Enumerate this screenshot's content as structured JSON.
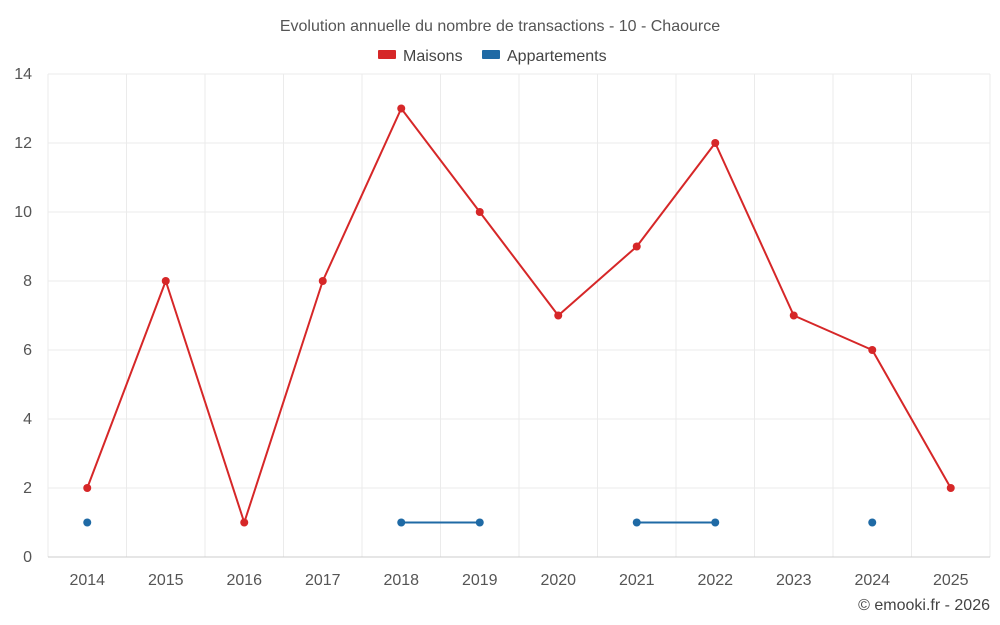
{
  "chart_data": {
    "type": "line",
    "title": "Evolution annuelle du nombre de transactions - 10 - Chaource",
    "categories": [
      "2014",
      "2015",
      "2016",
      "2017",
      "2018",
      "2019",
      "2020",
      "2021",
      "2022",
      "2023",
      "2024",
      "2025"
    ],
    "ylim": [
      0,
      14
    ],
    "yticks": [
      "0",
      "2",
      "4",
      "6",
      "8",
      "10",
      "12",
      "14"
    ],
    "grid": true,
    "legend_position": "top-center",
    "series": [
      {
        "name": "Maisons",
        "color": "#d62728",
        "values": [
          2,
          8,
          1,
          8,
          13,
          10,
          7,
          9,
          12,
          7,
          6,
          2
        ]
      },
      {
        "name": "Appartements",
        "color": "#1f6aa5",
        "values": [
          1,
          null,
          null,
          null,
          1,
          1,
          null,
          1,
          1,
          null,
          1,
          null
        ]
      }
    ],
    "credit": "© emooki.fr - 2026"
  }
}
